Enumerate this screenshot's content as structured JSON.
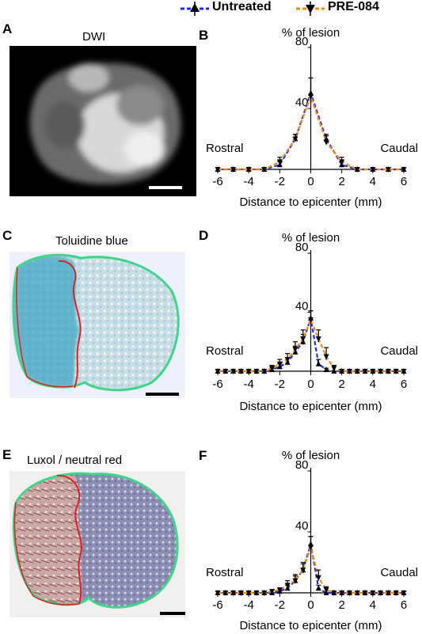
{
  "legend": {
    "untreated_label": "Untreated",
    "pre084_label": "PRE-084",
    "untreated_color": "#1f2de0",
    "pre084_color": "#f08a1a"
  },
  "panels": [
    {
      "letter": "A",
      "title": "DWI"
    },
    {
      "letter": "B"
    },
    {
      "letter": "C",
      "title": "Toluidine blue"
    },
    {
      "letter": "D"
    },
    {
      "letter": "E",
      "title": "Luxol / neutral red"
    },
    {
      "letter": "F"
    }
  ],
  "chart_data": [
    {
      "type": "line",
      "panel": "B",
      "title": "% of lesion",
      "xlabel": "Distance to epicenter (mm)",
      "ylabel": "% of lesion",
      "xlim": [
        -6,
        6
      ],
      "ylim": [
        0,
        80
      ],
      "xticks": [
        -6,
        -4,
        -2,
        0,
        2,
        4,
        6
      ],
      "yticks": [
        40,
        80
      ],
      "annotations": {
        "left": "Rostral",
        "right": "Caudal"
      },
      "series": [
        {
          "name": "Untreated",
          "x": [
            -6,
            -5,
            -4,
            -3,
            -2,
            -1,
            0,
            1,
            2,
            3,
            4,
            5,
            6
          ],
          "y": [
            0,
            0,
            0,
            0,
            3,
            20,
            50,
            20,
            3,
            0,
            0,
            0,
            0
          ],
          "err": [
            0,
            0,
            0,
            0,
            2,
            3,
            10,
            3,
            2,
            0,
            0,
            0,
            0
          ]
        },
        {
          "name": "PRE-084",
          "x": [
            -6,
            -5,
            -4,
            -3,
            -2,
            -1,
            0,
            1,
            2,
            3,
            4,
            5,
            6
          ],
          "y": [
            0,
            0,
            0,
            0,
            5,
            20,
            48,
            18,
            5,
            0,
            0,
            0,
            0
          ],
          "err": [
            0,
            0,
            0,
            0,
            3,
            3,
            12,
            4,
            3,
            0,
            0,
            0,
            0
          ]
        }
      ]
    },
    {
      "type": "line",
      "panel": "D",
      "title": "% of lesion",
      "xlabel": "Distance to epicenter (mm)",
      "ylabel": "% of lesion",
      "xlim": [
        -6,
        6
      ],
      "ylim": [
        0,
        80
      ],
      "xticks": [
        -6,
        -4,
        -2,
        0,
        2,
        4,
        6
      ],
      "yticks": [
        40,
        80
      ],
      "annotations": {
        "left": "Rostral",
        "right": "Caudal"
      },
      "series": [
        {
          "name": "Untreated",
          "x": [
            -6,
            -5.5,
            -5,
            -4.5,
            -4,
            -3.5,
            -3,
            -2.5,
            -2,
            -1.5,
            -1,
            -0.5,
            0,
            0.5,
            1,
            1.5,
            2,
            2.5,
            3,
            3.5,
            4,
            4.5,
            5,
            5.5,
            6
          ],
          "y": [
            0,
            0,
            0,
            0,
            0,
            0,
            0,
            1,
            3,
            6,
            13,
            20,
            36,
            5,
            1,
            0,
            0,
            0,
            0,
            0,
            0,
            0,
            0,
            0,
            0
          ],
          "err": [
            0,
            0,
            0,
            0,
            0,
            0,
            0,
            1,
            2,
            3,
            4,
            5,
            5,
            3,
            1,
            0,
            0,
            0,
            0,
            0,
            0,
            0,
            0,
            0,
            0
          ]
        },
        {
          "name": "PRE-084",
          "x": [
            -6,
            -5.5,
            -5,
            -4.5,
            -4,
            -3.5,
            -3,
            -2.5,
            -2,
            -1.5,
            -1,
            -0.5,
            0,
            0.5,
            1,
            1.5,
            2,
            2.5,
            3,
            3.5,
            4,
            4.5,
            5,
            5.5,
            6
          ],
          "y": [
            0,
            0,
            0,
            0,
            0,
            0,
            0,
            2,
            5,
            8,
            15,
            22,
            35,
            22,
            10,
            2,
            0,
            0,
            0,
            0,
            0,
            0,
            0,
            0,
            0
          ],
          "err": [
            0,
            0,
            0,
            0,
            0,
            0,
            0,
            2,
            3,
            4,
            5,
            6,
            6,
            6,
            6,
            2,
            0,
            0,
            0,
            0,
            0,
            0,
            0,
            0,
            0
          ]
        }
      ]
    },
    {
      "type": "line",
      "panel": "F",
      "title": "% of lesion",
      "xlabel": "Distance to epicenter (mm)",
      "ylabel": "% of lesion",
      "xlim": [
        -6,
        6
      ],
      "ylim": [
        0,
        80
      ],
      "xticks": [
        -6,
        -4,
        -2,
        0,
        2,
        4,
        6
      ],
      "yticks": [
        40,
        80
      ],
      "annotations": {
        "left": "Rostral",
        "right": "Caudal"
      },
      "series": [
        {
          "name": "Untreated",
          "x": [
            -6,
            -5.5,
            -5,
            -4.5,
            -4,
            -3.5,
            -3,
            -2.5,
            -2,
            -1.5,
            -1,
            -0.5,
            0,
            0.5,
            1,
            1.5,
            2,
            2.5,
            3,
            3.5,
            4,
            4.5,
            5,
            5.5,
            6
          ],
          "y": [
            0,
            0,
            0,
            0,
            0,
            0,
            0,
            0,
            1,
            3,
            8,
            15,
            32,
            3,
            0,
            0,
            0,
            0,
            0,
            0,
            0,
            0,
            0,
            0,
            0
          ],
          "err": [
            0,
            0,
            0,
            0,
            0,
            0,
            0,
            0,
            1,
            2,
            3,
            4,
            5,
            2,
            0,
            0,
            0,
            0,
            0,
            0,
            0,
            0,
            0,
            0,
            0
          ]
        },
        {
          "name": "PRE-084",
          "x": [
            -6,
            -5.5,
            -5,
            -4.5,
            -4,
            -3.5,
            -3,
            -2.5,
            -2,
            -1.5,
            -1,
            -0.5,
            0,
            0.5,
            1,
            1.5,
            2,
            2.5,
            3,
            3.5,
            4,
            4.5,
            5,
            5.5,
            6
          ],
          "y": [
            0,
            0,
            0,
            0,
            0,
            0,
            0,
            1,
            2,
            5,
            8,
            15,
            30,
            10,
            2,
            0,
            0,
            0,
            0,
            0,
            0,
            0,
            0,
            0,
            0
          ],
          "err": [
            0,
            0,
            0,
            0,
            0,
            0,
            0,
            1,
            1,
            3,
            4,
            5,
            7,
            5,
            2,
            0,
            0,
            0,
            0,
            0,
            0,
            0,
            0,
            0,
            0
          ]
        }
      ]
    }
  ]
}
